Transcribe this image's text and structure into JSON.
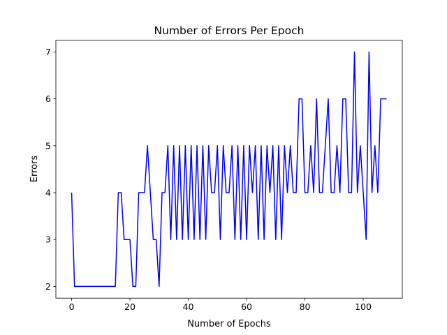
{
  "chart_data": {
    "type": "line",
    "title": "Number of Errors Per Epoch",
    "xlabel": "Number of Epochs",
    "ylabel": "Errors",
    "xlim": [
      -5.4,
      113.4
    ],
    "ylim": [
      1.75,
      7.25
    ],
    "xticks": [
      0,
      20,
      40,
      60,
      80,
      100
    ],
    "yticks": [
      2,
      3,
      4,
      5,
      6,
      7
    ],
    "grid": false,
    "series": [
      {
        "color": "#0000ff",
        "x": [
          0,
          1,
          2,
          3,
          4,
          5,
          6,
          7,
          8,
          9,
          10,
          11,
          12,
          13,
          14,
          15,
          16,
          17,
          18,
          19,
          20,
          21,
          22,
          23,
          24,
          25,
          26,
          27,
          28,
          29,
          30,
          31,
          32,
          33,
          34,
          35,
          36,
          37,
          38,
          39,
          40,
          41,
          42,
          43,
          44,
          45,
          46,
          47,
          48,
          49,
          50,
          51,
          52,
          53,
          54,
          55,
          56,
          57,
          58,
          59,
          60,
          61,
          62,
          63,
          64,
          65,
          66,
          67,
          68,
          69,
          70,
          71,
          72,
          73,
          74,
          75,
          76,
          77,
          78,
          79,
          80,
          81,
          82,
          83,
          84,
          85,
          86,
          87,
          88,
          89,
          90,
          91,
          92,
          93,
          94,
          95,
          96,
          97,
          98,
          99,
          100,
          101,
          102,
          103,
          104,
          105,
          106,
          107,
          108
        ],
        "y": [
          4,
          2,
          2,
          2,
          2,
          2,
          2,
          2,
          2,
          2,
          2,
          2,
          2,
          2,
          2,
          2,
          4,
          4,
          3,
          3,
          3,
          2,
          2,
          4,
          4,
          4,
          5,
          4,
          3,
          3,
          2,
          4,
          4,
          5,
          3,
          5,
          3,
          5,
          3,
          5,
          3,
          5,
          3,
          5,
          3,
          5,
          3,
          5,
          4,
          4,
          5,
          3,
          5,
          4,
          4,
          5,
          3,
          5,
          3,
          5,
          3,
          5,
          4,
          5,
          3,
          5,
          3,
          5,
          4,
          5,
          3,
          5,
          3,
          5,
          4,
          5,
          4,
          4,
          6,
          6,
          4,
          4,
          5,
          4,
          6,
          4,
          4,
          5,
          6,
          4,
          4,
          5,
          4,
          6,
          6,
          4,
          4,
          7,
          4,
          5,
          4,
          3,
          7,
          4,
          5,
          4,
          6,
          6,
          6
        ]
      }
    ]
  }
}
